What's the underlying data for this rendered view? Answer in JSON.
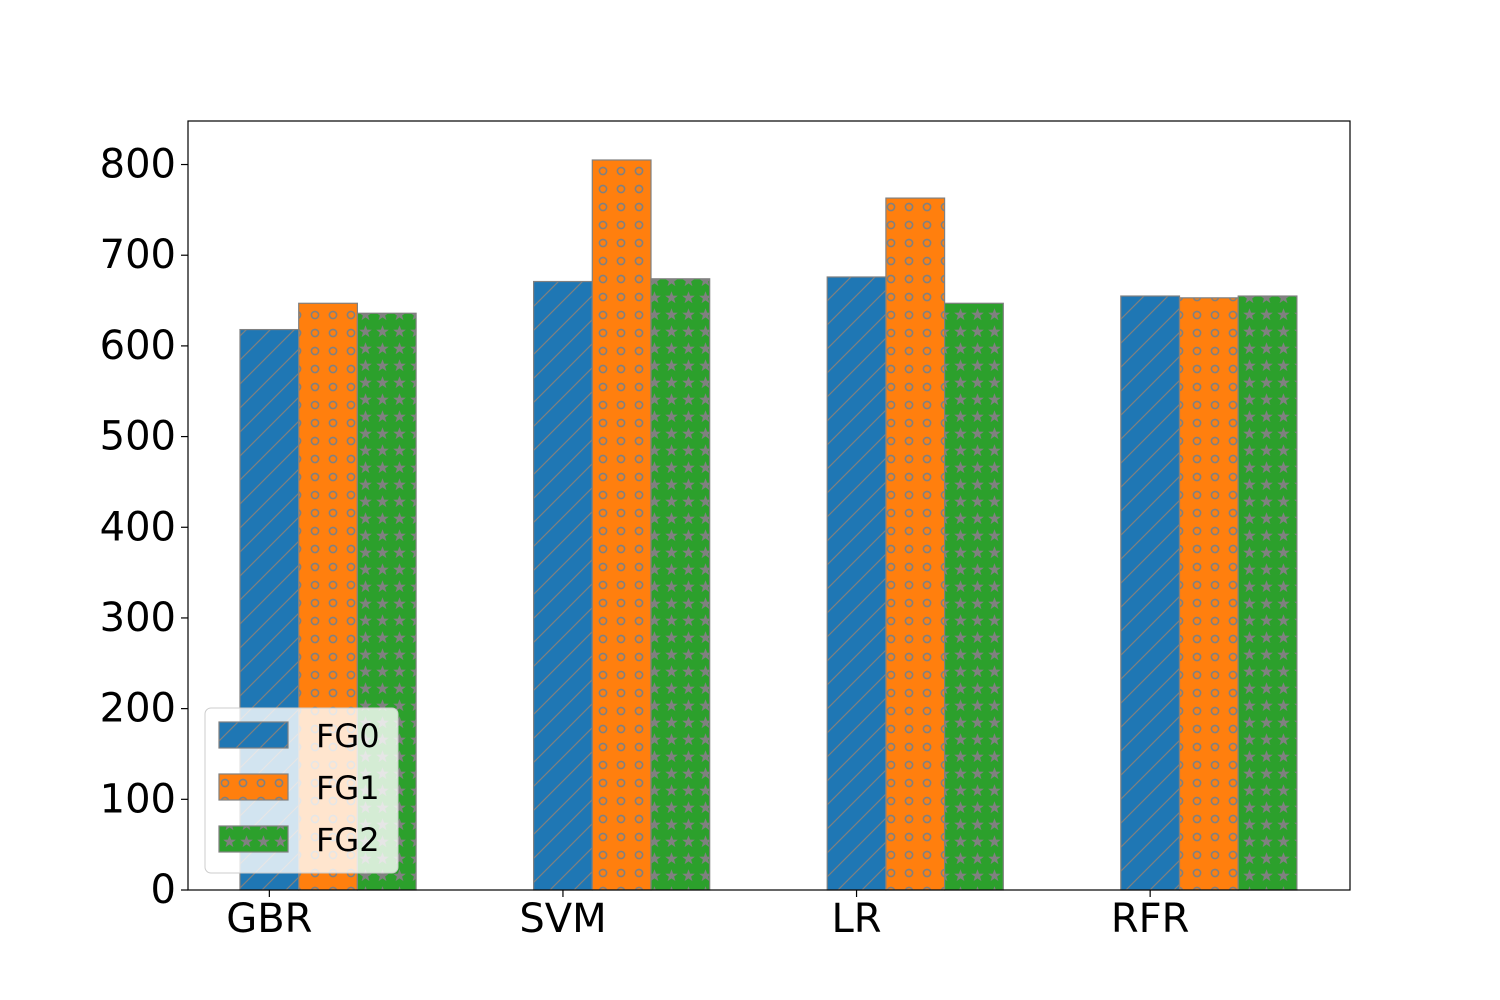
{
  "chart_data": {
    "type": "bar",
    "title": "",
    "xlabel": "",
    "ylabel": "",
    "categories": [
      "GBR",
      "SVM",
      "LR",
      "RFR"
    ],
    "series": [
      {
        "name": "FG0",
        "values": [
          618,
          671,
          676,
          655
        ],
        "color": "#1f77b4",
        "hatch": "diagonal"
      },
      {
        "name": "FG1",
        "values": [
          647,
          805,
          763,
          653
        ],
        "color": "#ff7f0e",
        "hatch": "circles"
      },
      {
        "name": "FG2",
        "values": [
          636,
          674,
          647,
          655
        ],
        "color": "#2ca02c",
        "hatch": "stars"
      }
    ],
    "ylim": [
      0,
      848
    ],
    "yticks": [
      0,
      100,
      200,
      300,
      400,
      500,
      600,
      700,
      800
    ],
    "grid": false,
    "legend_position": "lower-left",
    "hatch_color": "#808080"
  }
}
